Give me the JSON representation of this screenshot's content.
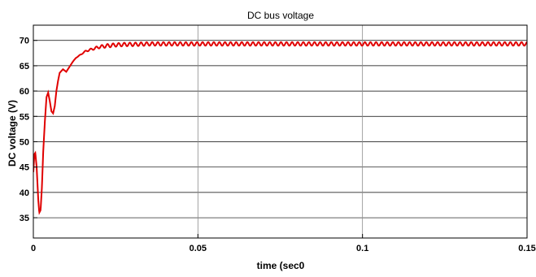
{
  "chart_data": {
    "type": "line",
    "title": "DC bus voltage",
    "xlabel": "time (sec0",
    "ylabel": "DC voltage (V)",
    "xlim": [
      0,
      0.15
    ],
    "ylim": [
      31,
      73
    ],
    "xticks": [
      0,
      0.05,
      0.1,
      0.15
    ],
    "xtick_labels": [
      "0",
      "0.05",
      "0.1",
      "0.15"
    ],
    "yticks": [
      35,
      40,
      45,
      50,
      55,
      60,
      65,
      70
    ],
    "ytick_labels": [
      "35",
      "40",
      "45",
      "50",
      "55",
      "60",
      "65",
      "70"
    ],
    "grid": true,
    "legend": "none",
    "series": [
      {
        "color": "#e00000",
        "ripple_amplitude": 0.35,
        "ripple_period": 0.0017,
        "x": [
          0,
          0.0003,
          0.0006,
          0.001,
          0.0015,
          0.0018,
          0.0022,
          0.0026,
          0.003,
          0.0035,
          0.004,
          0.0045,
          0.005,
          0.0055,
          0.006,
          0.0065,
          0.007,
          0.0075,
          0.008,
          0.009,
          0.01,
          0.011,
          0.012,
          0.013,
          0.014,
          0.015,
          0.016,
          0.018,
          0.02,
          0.022,
          0.025,
          0.028,
          0.03,
          0.035,
          0.04,
          0.05,
          0.06,
          0.08,
          0.1,
          0.12,
          0.14,
          0.15
        ],
        "y": [
          44,
          47.5,
          47.8,
          45,
          38.5,
          36,
          36.5,
          41,
          48,
          54,
          58.8,
          59.7,
          58,
          56,
          55.6,
          57,
          60,
          62,
          63.6,
          64.3,
          63.8,
          64.8,
          65.8,
          66.6,
          67.0,
          67.5,
          67.9,
          68.3,
          68.7,
          68.9,
          69.1,
          69.2,
          69.2,
          69.3,
          69.3,
          69.3,
          69.3,
          69.3,
          69.3,
          69.3,
          69.3,
          69.3
        ]
      }
    ]
  }
}
